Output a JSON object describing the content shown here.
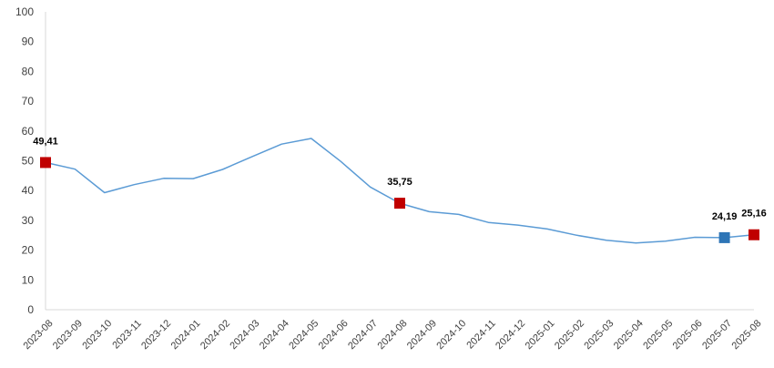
{
  "chart_data": {
    "type": "line",
    "title": "",
    "xlabel": "",
    "ylabel": "",
    "ylim": [
      0,
      100
    ],
    "yticks": [
      0,
      10,
      20,
      30,
      40,
      50,
      60,
      70,
      80,
      90,
      100
    ],
    "grid": false,
    "legend": "none",
    "line_color": "#5B9BD5",
    "marker_color": "#C00000",
    "highlight_color": "#2E75B6",
    "x": [
      "2023-08",
      "2023-09",
      "2023-10",
      "2023-11",
      "2023-12",
      "2024-01",
      "2024-02",
      "2024-03",
      "2024-04",
      "2024-05",
      "2024-06",
      "2024-07",
      "2024-08",
      "2024-09",
      "2024-10",
      "2024-11",
      "2024-12",
      "2025-01",
      "2025-02",
      "2025-03",
      "2025-04",
      "2025-05",
      "2025-06",
      "2025-07",
      "2025-08"
    ],
    "series": [
      {
        "values": [
          49.41,
          47.2,
          39.3,
          42.0,
          44.1,
          44.0,
          47.1,
          51.4,
          55.6,
          57.5,
          49.8,
          41.2,
          35.75,
          32.9,
          32.0,
          29.3,
          28.4,
          27.1,
          25.0,
          23.3,
          22.4,
          23.0,
          24.3,
          24.19,
          25.16
        ]
      }
    ],
    "annotations": [
      {
        "x": "2023-08",
        "label": "49,41",
        "marker": "square",
        "color": "#C00000"
      },
      {
        "x": "2024-08",
        "label": "35,75",
        "marker": "square",
        "color": "#C00000"
      },
      {
        "x": "2025-07",
        "label": "24,19",
        "marker": "square",
        "color": "#2E75B6"
      },
      {
        "x": "2025-08",
        "label": "25,16",
        "marker": "square",
        "color": "#C00000"
      }
    ]
  }
}
